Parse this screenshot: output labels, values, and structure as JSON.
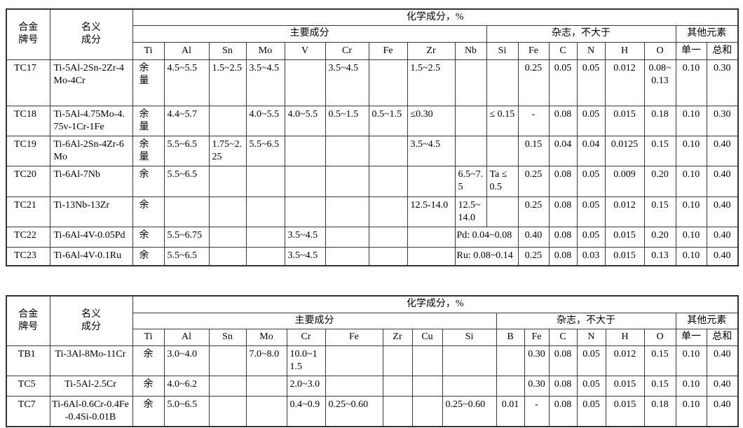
{
  "page": {
    "background_color": "#ffffff",
    "border_color": "#333333",
    "text_color": "#000000"
  },
  "table1": {
    "header": {
      "alloy_grade": "合金\n牌号",
      "nominal": "名义\n成分",
      "chem": "化学成分，%",
      "main": "主要成分",
      "impurities": "杂志，不大于",
      "others": "其他元素",
      "element_cols": [
        "Ti",
        "Al",
        "Sn",
        "Mo",
        "V",
        "Cr",
        "Fe",
        "Zr",
        "Nb",
        "Si",
        "Fe",
        "C",
        "N",
        "H",
        "O"
      ],
      "other_cols": [
        "单一",
        "总和"
      ]
    },
    "merges": [
      {
        "row": 5,
        "col": 8,
        "span": 2
      },
      {
        "row": 6,
        "col": 8,
        "span": 2
      }
    ],
    "rows": [
      {
        "grade": "TC17",
        "name": "Ti-5Al-2Sn-2Zr-4Mo-4Cr",
        "cells": [
          "余量",
          "4.5~5.5",
          "1.5~2.5",
          "3.5~4.5",
          "",
          "3.5~4.5",
          "",
          "1.5~2.5",
          "",
          "",
          "0.25",
          "0.05",
          "0.05",
          "0.012",
          "0.08~0.13",
          "0.10",
          "0.30"
        ]
      },
      {
        "grade": "TC18",
        "name": "Ti-5Al-4.75Mo-4.75v-1Cr-1Fe",
        "cells": [
          "余量",
          "4.4~5.7",
          "",
          "4.0~5.5",
          "4.0~5.5",
          "0.5~1.5",
          "0.5~1.5",
          "≤0.30",
          "",
          "≤ 0.15",
          "-",
          "0.08",
          "0.05",
          "0.015",
          "0.18",
          "0.10",
          "0.30"
        ]
      },
      {
        "grade": "TC19",
        "name": "Ti-6Al-2Sn-4Zr-6Mo",
        "cells": [
          "余量",
          "5.5~6.5",
          "1.75~2.25",
          "5.5~6.5",
          "",
          "",
          "",
          "3.5~4.5",
          "",
          "",
          "0.15",
          "0.04",
          "0.04",
          "0.0125",
          "0.15",
          "0.10",
          "0.40"
        ]
      },
      {
        "grade": "TC20",
        "name": "Ti-6Al-7Nb",
        "cells": [
          "余",
          "5.5~6.5",
          "",
          "",
          "",
          "",
          "",
          "",
          "6.5~7.5",
          "Ta ≤ 0.5",
          "0.25",
          "0.08",
          "0.05",
          "0.009",
          "0.20",
          "0.10",
          "0.40"
        ]
      },
      {
        "grade": "TC21",
        "name": "Ti-13Nb-13Zr",
        "cells": [
          "余",
          "",
          "",
          "",
          "",
          "",
          "",
          "12.5-14.0",
          "12.5~14.0",
          "",
          "0.25",
          "0.08",
          "0.05",
          "0.012",
          "0.15",
          "0.10",
          "0.40"
        ]
      },
      {
        "grade": "TC22",
        "name": "Ti-6Al-4V-0.05Pd",
        "cells": [
          "余",
          "5.5~6.75",
          "",
          "",
          "3.5~4.5",
          "",
          "",
          "",
          "Pd: 0.04~0.08",
          "",
          "0.40",
          "0.08",
          "0.05",
          "0.015",
          "0.20",
          "0.10",
          "0.40"
        ]
      },
      {
        "grade": "TC23",
        "name": "Ti-6Al-4V-0.1Ru",
        "cells": [
          "余",
          "5.5~6.5",
          "",
          "",
          "3.5~4.5",
          "",
          "",
          "",
          "Ru: 0.08~0.14",
          "",
          "0.25",
          "0.08",
          "0.03",
          "0.015",
          "0.13",
          "0.10",
          "0.40"
        ]
      }
    ]
  },
  "table2": {
    "header": {
      "alloy_grade": "合金\n牌号",
      "nominal": "名义\n成分",
      "chem": "化学成分，%",
      "main": "主要成分",
      "impurities": "杂志，不大于",
      "others": "其他元素",
      "element_cols": [
        "Ti",
        "Al",
        "Sn",
        "Mo",
        "Cr",
        "Fe",
        "Zr",
        "Cu",
        "Si",
        "B",
        "Fe",
        "C",
        "N",
        "H",
        "O"
      ],
      "other_cols": [
        "单一",
        "总和"
      ]
    },
    "merges": [],
    "rows": [
      {
        "grade": "TB1",
        "name": "Ti-3Al-8Mo-11Cr",
        "cells": [
          "余",
          "3.0~4.0",
          "",
          "7.0~8.0",
          "10.0~11.5",
          "",
          "",
          "",
          "",
          "",
          "0.30",
          "0.08",
          "0.05",
          "0.012",
          "0.15",
          "0.10",
          "0.40"
        ]
      },
      {
        "grade": "TC5",
        "name": "Ti-5Al-2.5Cr",
        "cells": [
          "余",
          "4.0~6.2",
          "",
          "",
          "2.0~3.0",
          "",
          "",
          "",
          "",
          "",
          "0.30",
          "0.08",
          "0.05",
          "0.015",
          "0.15",
          "0.10",
          "0.40"
        ]
      },
      {
        "grade": "TC7",
        "name": "Ti-6Al-0.6Cr-0.4Fe-0.4Si-0.01B",
        "cells": [
          "余",
          "5.0~6.5",
          "",
          "",
          "0.4~0.9",
          "0.25~0.60",
          "",
          "",
          "0.25~0.60",
          "0.01",
          "-",
          "0.08",
          "0.05",
          "0.015",
          "0.18",
          "0.10",
          "0.40"
        ]
      }
    ]
  }
}
